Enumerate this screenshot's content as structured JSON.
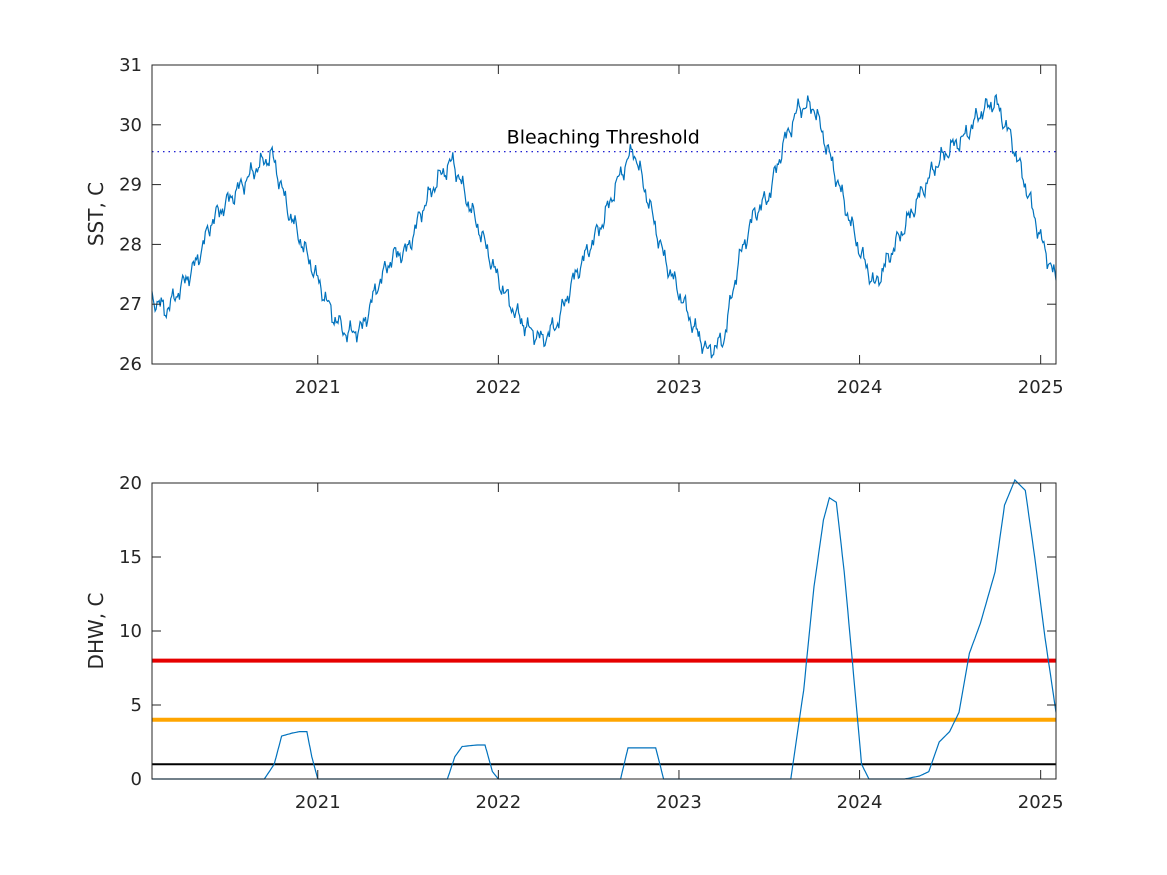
{
  "chart_data": [
    {
      "type": "line",
      "ylabel": "SST, C",
      "xlim": [
        "2020-02-01",
        "2025-02-01"
      ],
      "ylim": [
        26,
        31
      ],
      "x_ticks": [
        "2021",
        "2022",
        "2023",
        "2024",
        "2025"
      ],
      "y_ticks": [
        "26",
        "27",
        "28",
        "29",
        "30",
        "31"
      ],
      "grid": false,
      "colors": {
        "series": "#0072bd",
        "threshold": "#0000cc"
      },
      "series": [
        {
          "x": [
            "2020-02-01",
            "2020-03-01",
            "2020-04-01",
            "2020-05-01",
            "2020-06-01",
            "2020-07-01",
            "2020-08-01",
            "2020-09-01",
            "2020-10-01",
            "2020-11-01",
            "2020-12-01",
            "2021-01-01",
            "2021-02-01",
            "2021-03-01",
            "2021-04-01",
            "2021-05-01",
            "2021-06-01",
            "2021-07-01",
            "2021-08-01",
            "2021-09-01",
            "2021-10-01",
            "2021-11-01",
            "2021-12-01",
            "2022-01-01",
            "2022-02-01",
            "2022-03-01",
            "2022-04-01",
            "2022-05-01",
            "2022-06-01",
            "2022-07-01",
            "2022-08-01",
            "2022-09-01",
            "2022-10-01",
            "2022-11-01",
            "2022-12-01",
            "2023-01-01",
            "2023-02-01",
            "2023-03-01",
            "2023-04-01",
            "2023-05-01",
            "2023-06-01",
            "2023-07-01",
            "2023-08-01",
            "2023-09-01",
            "2023-10-01",
            "2023-11-01",
            "2023-12-01",
            "2024-01-01",
            "2024-02-01",
            "2024-03-01",
            "2024-04-01",
            "2024-05-01",
            "2024-06-01",
            "2024-07-01",
            "2024-08-01",
            "2024-09-01",
            "2024-10-01",
            "2024-11-01",
            "2024-12-01",
            "2025-01-01",
            "2025-02-01"
          ],
          "values": [
            27.1,
            26.9,
            27.3,
            27.7,
            28.4,
            28.7,
            29.0,
            29.3,
            29.5,
            28.6,
            28.0,
            27.4,
            26.8,
            26.5,
            26.6,
            27.3,
            27.8,
            27.9,
            28.6,
            29.1,
            29.4,
            28.7,
            28.1,
            27.4,
            26.9,
            26.6,
            26.4,
            26.7,
            27.4,
            27.9,
            28.4,
            29.1,
            29.6,
            28.7,
            27.8,
            27.2,
            26.6,
            26.2,
            26.4,
            27.7,
            28.5,
            28.8,
            29.7,
            30.3,
            30.3,
            29.5,
            28.7,
            27.9,
            27.3,
            27.8,
            28.3,
            28.8,
            29.3,
            29.6,
            29.8,
            30.2,
            30.4,
            29.8,
            29.0,
            28.1,
            27.4
          ]
        }
      ],
      "threshold": {
        "value": 29.55,
        "label": "Bleaching Threshold"
      }
    },
    {
      "type": "line",
      "ylabel": "DHW, C",
      "xlim": [
        "2020-02-01",
        "2025-02-01"
      ],
      "ylim": [
        0,
        20
      ],
      "x_ticks": [
        "2021",
        "2022",
        "2023",
        "2024",
        "2025"
      ],
      "y_ticks": [
        "0",
        "5",
        "10",
        "15",
        "20"
      ],
      "grid": false,
      "series": [
        {
          "color": "#0072bd",
          "x": [
            "2020-02-01",
            "2020-09-15",
            "2020-10-05",
            "2020-10-20",
            "2020-11-10",
            "2020-11-25",
            "2020-12-10",
            "2020-12-20",
            "2021-01-01",
            "2021-09-20",
            "2021-10-05",
            "2021-10-20",
            "2021-11-20",
            "2021-12-05",
            "2021-12-20",
            "2022-01-01",
            "2022-09-05",
            "2022-09-20",
            "2022-11-15",
            "2022-12-01",
            "2023-08-15",
            "2023-09-10",
            "2023-10-01",
            "2023-10-20",
            "2023-11-01",
            "2023-11-15",
            "2023-12-01",
            "2023-12-20",
            "2024-01-05",
            "2024-01-20",
            "2024-04-01",
            "2024-05-01",
            "2024-05-20",
            "2024-06-10",
            "2024-07-01",
            "2024-07-20",
            "2024-08-10",
            "2024-09-01",
            "2024-10-01",
            "2024-10-20",
            "2024-11-10",
            "2024-12-01",
            "2024-12-20",
            "2025-01-10",
            "2025-02-01"
          ],
          "values": [
            0,
            0,
            1.0,
            2.9,
            3.1,
            3.2,
            3.2,
            1.5,
            0,
            0,
            1.5,
            2.2,
            2.3,
            2.3,
            0.5,
            0,
            0,
            2.1,
            2.1,
            0,
            0,
            6.0,
            13.0,
            17.5,
            19.0,
            18.7,
            14.0,
            7.0,
            1.0,
            0,
            0,
            0.2,
            0.5,
            2.5,
            3.2,
            4.5,
            8.5,
            10.5,
            14.0,
            18.5,
            20.2,
            19.5,
            15.0,
            9.5,
            4.5
          ]
        }
      ],
      "reference_lines": [
        {
          "value": 8,
          "color": "#e60000"
        },
        {
          "value": 4,
          "color": "#ffa500"
        },
        {
          "value": 1,
          "color": "#000000"
        }
      ]
    }
  ]
}
